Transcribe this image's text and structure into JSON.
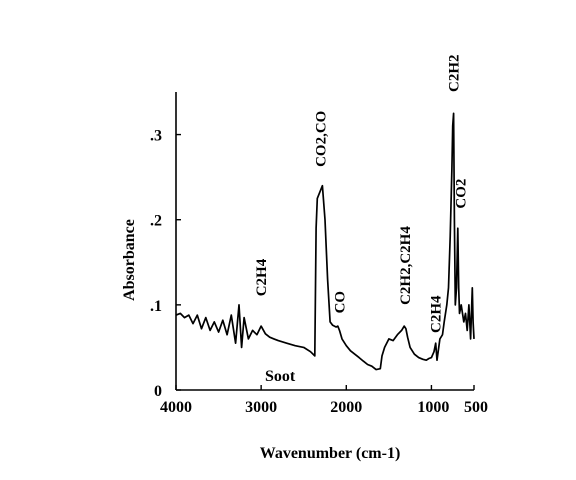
{
  "chart_data": {
    "type": "line",
    "title": "",
    "xlabel": "Wavenumber (cm-1)",
    "ylabel": "Absorbance",
    "xlim": [
      4000,
      500
    ],
    "ylim": [
      0,
      0.35
    ],
    "x_ticks": [
      {
        "value": 4000,
        "label": "4000"
      },
      {
        "value": 3000,
        "label": "3000"
      },
      {
        "value": 2000,
        "label": "2000"
      },
      {
        "value": 1000,
        "label": "1000"
      },
      {
        "value": 500,
        "label": "500"
      }
    ],
    "y_ticks": [
      {
        "value": 0,
        "label": "0"
      },
      {
        "value": 0.1,
        "label": ".1"
      },
      {
        "value": 0.2,
        "label": ".2"
      },
      {
        "value": 0.3,
        "label": ".3"
      }
    ],
    "inset_label": "Soot",
    "grid": false,
    "series": [
      {
        "points": [
          [
            4000,
            0.088
          ],
          [
            3950,
            0.09
          ],
          [
            3900,
            0.085
          ],
          [
            3850,
            0.088
          ],
          [
            3800,
            0.078
          ],
          [
            3750,
            0.088
          ],
          [
            3700,
            0.072
          ],
          [
            3650,
            0.085
          ],
          [
            3600,
            0.07
          ],
          [
            3550,
            0.08
          ],
          [
            3500,
            0.068
          ],
          [
            3450,
            0.082
          ],
          [
            3400,
            0.065
          ],
          [
            3350,
            0.088
          ],
          [
            3300,
            0.055
          ],
          [
            3260,
            0.1
          ],
          [
            3230,
            0.05
          ],
          [
            3200,
            0.085
          ],
          [
            3150,
            0.06
          ],
          [
            3100,
            0.07
          ],
          [
            3050,
            0.065
          ],
          [
            3000,
            0.075
          ],
          [
            2950,
            0.066
          ],
          [
            2900,
            0.062
          ],
          [
            2850,
            0.06
          ],
          [
            2800,
            0.058
          ],
          [
            2700,
            0.055
          ],
          [
            2600,
            0.052
          ],
          [
            2500,
            0.05
          ],
          [
            2420,
            0.045
          ],
          [
            2370,
            0.04
          ],
          [
            2355,
            0.19
          ],
          [
            2340,
            0.225
          ],
          [
            2320,
            0.23
          ],
          [
            2300,
            0.235
          ],
          [
            2280,
            0.24
          ],
          [
            2250,
            0.2
          ],
          [
            2220,
            0.13
          ],
          [
            2190,
            0.08
          ],
          [
            2160,
            0.076
          ],
          [
            2120,
            0.074
          ],
          [
            2100,
            0.075
          ],
          [
            2080,
            0.07
          ],
          [
            2050,
            0.06
          ],
          [
            2000,
            0.052
          ],
          [
            1950,
            0.046
          ],
          [
            1900,
            0.042
          ],
          [
            1850,
            0.038
          ],
          [
            1800,
            0.034
          ],
          [
            1750,
            0.03
          ],
          [
            1700,
            0.028
          ],
          [
            1650,
            0.024
          ],
          [
            1600,
            0.025
          ],
          [
            1580,
            0.04
          ],
          [
            1550,
            0.05
          ],
          [
            1500,
            0.06
          ],
          [
            1450,
            0.058
          ],
          [
            1400,
            0.065
          ],
          [
            1350,
            0.07
          ],
          [
            1320,
            0.075
          ],
          [
            1300,
            0.072
          ],
          [
            1280,
            0.062
          ],
          [
            1250,
            0.05
          ],
          [
            1200,
            0.042
          ],
          [
            1150,
            0.038
          ],
          [
            1100,
            0.036
          ],
          [
            1060,
            0.035
          ],
          [
            1030,
            0.037
          ],
          [
            1000,
            0.038
          ],
          [
            970,
            0.045
          ],
          [
            950,
            0.055
          ],
          [
            935,
            0.035
          ],
          [
            900,
            0.06
          ],
          [
            870,
            0.065
          ],
          [
            850,
            0.08
          ],
          [
            820,
            0.1
          ],
          [
            800,
            0.12
          ],
          [
            780,
            0.18
          ],
          [
            760,
            0.26
          ],
          [
            750,
            0.31
          ],
          [
            740,
            0.325
          ],
          [
            730,
            0.2
          ],
          [
            720,
            0.1
          ],
          [
            705,
            0.12
          ],
          [
            690,
            0.19
          ],
          [
            680,
            0.12
          ],
          [
            670,
            0.09
          ],
          [
            650,
            0.1
          ],
          [
            620,
            0.08
          ],
          [
            600,
            0.09
          ],
          [
            580,
            0.07
          ],
          [
            560,
            0.1
          ],
          [
            540,
            0.06
          ],
          [
            520,
            0.12
          ],
          [
            510,
            0.08
          ],
          [
            500,
            0.06
          ]
        ]
      }
    ],
    "annotations": [
      {
        "text": "C2H4",
        "x": 3000,
        "y": 0.11
      },
      {
        "text": "CO2,CO",
        "x": 2300,
        "y": 0.262
      },
      {
        "text": "CO",
        "x": 2080,
        "y": 0.09
      },
      {
        "text": "C2H2,C2H4",
        "x": 1310,
        "y": 0.1
      },
      {
        "text": "C2H4",
        "x": 950,
        "y": 0.067
      },
      {
        "text": "C2H2",
        "x": 740,
        "y": 0.35
      },
      {
        "text": "CO2",
        "x": 660,
        "y": 0.213
      }
    ]
  }
}
